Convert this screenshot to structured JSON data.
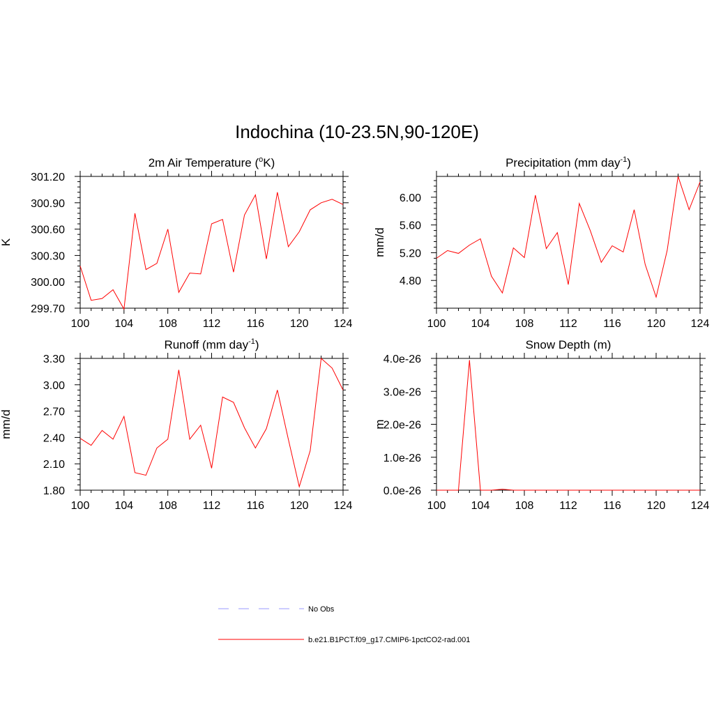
{
  "figure": {
    "title": "Indochina (10-23.5N,90-120E)"
  },
  "chart_data": [
    {
      "type": "line",
      "title": "2m Air Temperature (°K)",
      "title_parts": [
        "2m Air Temperature (",
        "o",
        "K)"
      ],
      "ylabel": "K",
      "xlim": [
        100,
        124
      ],
      "ylim": [
        299.7,
        301.2
      ],
      "xticks": [
        "100",
        "104",
        "108",
        "112",
        "116",
        "120",
        "124"
      ],
      "yticks": [
        "299.70",
        "300.00",
        "300.30",
        "300.60",
        "300.90",
        "301.20"
      ],
      "x": [
        100,
        101,
        102,
        103,
        104,
        105,
        106,
        107,
        108,
        109,
        110,
        111,
        112,
        113,
        114,
        115,
        116,
        117,
        118,
        119,
        120,
        121,
        122,
        123,
        124
      ],
      "series": [
        {
          "color": "#ff0000",
          "values": [
            300.18,
            299.79,
            299.81,
            299.91,
            299.69,
            300.78,
            300.14,
            300.21,
            300.6,
            299.88,
            300.1,
            300.09,
            300.66,
            300.71,
            300.11,
            300.76,
            300.99,
            300.26,
            301.02,
            300.4,
            300.57,
            300.82,
            300.9,
            300.94,
            300.88
          ]
        }
      ]
    },
    {
      "type": "line",
      "title": "Precipitation (mm day-1)",
      "title_parts": [
        "Precipitation (mm day",
        "-1",
        ")"
      ],
      "ylabel": "mm/d",
      "xlim": [
        100,
        124
      ],
      "ylim": [
        4.4,
        6.3
      ],
      "xticks": [
        "100",
        "104",
        "108",
        "112",
        "116",
        "120",
        "124"
      ],
      "yticks": [
        "4.80",
        "5.20",
        "5.60",
        "6.00"
      ],
      "x": [
        100,
        101,
        102,
        103,
        104,
        105,
        106,
        107,
        108,
        109,
        110,
        111,
        112,
        113,
        114,
        115,
        116,
        117,
        118,
        119,
        120,
        121,
        122,
        123,
        124
      ],
      "series": [
        {
          "color": "#ff0000",
          "values": [
            5.12,
            5.23,
            5.19,
            5.31,
            5.4,
            4.86,
            4.62,
            5.27,
            5.13,
            6.03,
            5.26,
            5.49,
            4.74,
            5.91,
            5.52,
            5.06,
            5.3,
            5.21,
            5.82,
            5.03,
            4.56,
            5.23,
            6.3,
            5.82,
            6.22
          ]
        }
      ]
    },
    {
      "type": "line",
      "title": "Runoff (mm day-1)",
      "title_parts": [
        "Runoff (mm day",
        "-1",
        ")"
      ],
      "ylabel": "mm/d",
      "xlim": [
        100,
        124
      ],
      "ylim": [
        1.8,
        3.3
      ],
      "xticks": [
        "100",
        "104",
        "108",
        "112",
        "116",
        "120",
        "124"
      ],
      "yticks": [
        "1.80",
        "2.10",
        "2.40",
        "2.70",
        "3.00",
        "3.30"
      ],
      "x": [
        100,
        101,
        102,
        103,
        104,
        105,
        106,
        107,
        108,
        109,
        110,
        111,
        112,
        113,
        114,
        115,
        116,
        117,
        118,
        119,
        120,
        121,
        122,
        123,
        124
      ],
      "series": [
        {
          "color": "#ff0000",
          "values": [
            2.39,
            2.31,
            2.48,
            2.38,
            2.64,
            2.0,
            1.97,
            2.28,
            2.38,
            3.17,
            2.38,
            2.54,
            2.05,
            2.86,
            2.8,
            2.51,
            2.28,
            2.5,
            2.94,
            2.38,
            1.84,
            2.25,
            3.3,
            3.19,
            2.94
          ]
        }
      ]
    },
    {
      "type": "line",
      "title": "Snow Depth (m)",
      "title_parts": [
        "Snow Depth (m)"
      ],
      "ylabel": "m",
      "xlim": [
        100,
        124
      ],
      "ylim": [
        0,
        4e-26
      ],
      "xticks": [
        "100",
        "104",
        "108",
        "112",
        "116",
        "120",
        "124"
      ],
      "yticks": [
        "0.0e-26",
        "1.0e-26",
        "2.0e-26",
        "3.0e-26",
        "4.0e-26"
      ],
      "x": [
        100,
        101,
        102,
        103,
        104,
        105,
        106,
        107,
        108,
        109,
        110,
        111,
        112,
        113,
        114,
        115,
        116,
        117,
        118,
        119,
        120,
        121,
        122,
        123,
        124
      ],
      "series": [
        {
          "color": "#ff0000",
          "values": [
            0,
            0,
            0,
            3.95e-26,
            0,
            0,
            3e-28,
            0,
            0,
            0,
            0,
            0,
            0,
            0,
            0,
            0,
            0,
            0,
            0,
            0,
            0,
            0,
            0,
            0,
            0
          ]
        }
      ]
    }
  ],
  "legend": [
    {
      "label": "No Obs",
      "color": "#9999ff",
      "style": "dashed"
    },
    {
      "label": "b.e21.B1PCT.f09_g17.CMIP6-1pctCO2-rad.001",
      "color": "#ff0000",
      "style": "solid"
    }
  ]
}
